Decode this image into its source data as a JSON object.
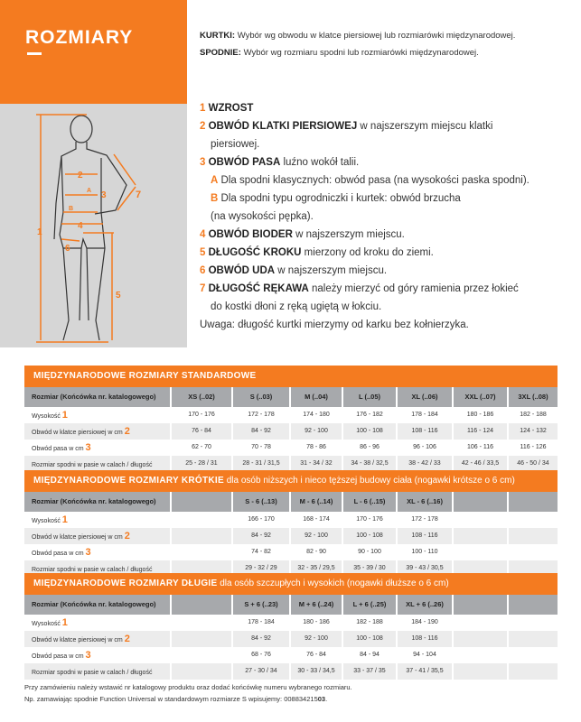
{
  "brand": {
    "title": "ROZMIARY"
  },
  "intro": {
    "kurtki_label": "KURTKI:",
    "kurtki_text": " Wybór wg obwodu w klatce piersiowej lub rozmiarówki międzynarodowej.",
    "spodnie_label": "SPODNIE:",
    "spodnie_text": " Wybór wg rozmiaru spodni lub rozmiarówki międzynarodowej."
  },
  "figure": {
    "labels": [
      "1",
      "2",
      "3",
      "4",
      "5",
      "6",
      "7",
      "A",
      "B"
    ]
  },
  "legend": [
    {
      "num": "1",
      "title": "WZROST",
      "text": ""
    },
    {
      "num": "2",
      "title": "OBWÓD KLATKI PIERSIOWEJ",
      "text": " w najszerszym miejscu klatki",
      "cont": "piersiowej."
    },
    {
      "num": "3",
      "title": "OBWÓD PASA",
      "text": " luźno wokół talii."
    },
    {
      "num": "A",
      "title": "",
      "text": " Dla spodni klasycznych: obwód pasa (na wysokości paska spodni)."
    },
    {
      "num": "B",
      "title": "",
      "text": " Dla spodni typu ogrodniczki i kurtek: obwód brzucha",
      "cont": "(na wysokości pępka)."
    },
    {
      "num": "4",
      "title": "OBWÓD BIODER",
      "text": " w najszerszym miejscu."
    },
    {
      "num": "5",
      "title": "DŁUGOŚĆ KROKU",
      "text": " mierzony od kroku do ziemi."
    },
    {
      "num": "6",
      "title": "OBWÓD UDA",
      "text": " w najszerszym miejscu."
    },
    {
      "num": "7",
      "title": "DŁUGOŚĆ RĘKAWA",
      "text": " należy mierzyć od góry ramienia przez łokieć",
      "cont": "do kostki dłoni z ręką ugiętą w łokciu."
    }
  ],
  "note": "Uwaga: długość kurtki mierzymy od karku bez kołnierzyka.",
  "tables": [
    {
      "title": "MIĘDZYNARODOWE ROZMIARY STANDARDOWE",
      "subtitle": "",
      "header": [
        "Rozmiar (Końcówka nr. katalogowego)",
        "XS (..02)",
        "S (..03)",
        "M (..04)",
        "L (..05)",
        "XL (..06)",
        "XXL (..07)",
        "3XL (..08)"
      ],
      "rows": [
        {
          "label": "Wysokość",
          "num": "1",
          "cells": [
            "170 - 176",
            "172 - 178",
            "174 - 180",
            "176 - 182",
            "178 - 184",
            "180 - 186",
            "182 - 188"
          ]
        },
        {
          "label": "Obwód w klatce piersiowej w cm",
          "num": "2",
          "cells": [
            "76 - 84",
            "84 - 92",
            "92 - 100",
            "100 - 108",
            "108 - 116",
            "116 - 124",
            "124 - 132"
          ]
        },
        {
          "label": "Obwód pasa w cm",
          "num": "3",
          "cells": [
            "62 - 70",
            "70 - 78",
            "78 - 86",
            "86 - 96",
            "96 - 106",
            "106 - 116",
            "116 - 126"
          ]
        },
        {
          "label": "Rozmiar spodni w pasie w calach / długość",
          "num": "",
          "cells": [
            "25 - 28 / 31",
            "28 - 31 / 31,5",
            "31 - 34 / 32",
            "34 - 38 / 32,5",
            "38 - 42 / 33",
            "42 - 46 / 33,5",
            "46 - 50 / 34"
          ]
        }
      ]
    },
    {
      "title": "MIĘDZYNARODOWE ROZMIARY KRÓTKIE",
      "subtitle": " dla osób niższych i nieco tęższej budowy ciała (nogawki krótsze o 6 cm)",
      "header": [
        "Rozmiar (Końcówka nr. katalogowego)",
        "",
        "S - 6 (..13)",
        "M - 6 (..14)",
        "L - 6 (..15)",
        "XL - 6 (..16)",
        "",
        ""
      ],
      "rows": [
        {
          "label": "Wysokość",
          "num": "1",
          "cells": [
            "",
            "166 - 170",
            "168 - 174",
            "170 - 176",
            "172 - 178",
            "",
            ""
          ]
        },
        {
          "label": "Obwód w klatce piersiowej w cm",
          "num": "2",
          "cells": [
            "",
            "84 - 92",
            "92 - 100",
            "100 - 108",
            "108 - 116",
            "",
            ""
          ]
        },
        {
          "label": "Obwód pasa w cm",
          "num": "3",
          "cells": [
            "",
            "74 - 82",
            "82 - 90",
            "90 - 100",
            "100 - 110",
            "",
            ""
          ]
        },
        {
          "label": "Rozmiar spodni w pasie w calach / długość",
          "num": "",
          "cells": [
            "",
            "29 - 32 / 29",
            "32 - 35 / 29,5",
            "35 - 39 / 30",
            "39 - 43 / 30,5",
            "",
            ""
          ]
        }
      ]
    },
    {
      "title": "MIĘDZYNARODOWE ROZMIARY DŁUGIE",
      "subtitle": " dla osób szczupłych i wysokich (nogawki dłuższe o 6 cm)",
      "header": [
        "Rozmiar (Końcówka nr. katalogowego)",
        "",
        "S + 6 (..23)",
        "M + 6 (..24)",
        "L + 6 (..25)",
        "XL + 6 (..26)",
        "",
        ""
      ],
      "rows": [
        {
          "label": "Wysokość",
          "num": "1",
          "cells": [
            "",
            "178 - 184",
            "180 - 186",
            "182 - 188",
            "184 - 190",
            "",
            ""
          ]
        },
        {
          "label": "Obwód w klatce piersiowej w cm",
          "num": "2",
          "cells": [
            "",
            "84 - 92",
            "92 - 100",
            "100 - 108",
            "108 - 116",
            "",
            ""
          ]
        },
        {
          "label": "Obwód pasa w cm",
          "num": "3",
          "cells": [
            "",
            "68 - 76",
            "76 - 84",
            "84 - 94",
            "94 - 104",
            "",
            ""
          ]
        },
        {
          "label": "Rozmiar spodni w pasie w calach / długość",
          "num": "",
          "cells": [
            "",
            "27 - 30 / 34",
            "30 - 33 / 34,5",
            "33 - 37 / 35",
            "37 - 41 / 35,5",
            "",
            ""
          ]
        }
      ]
    }
  ],
  "footer": {
    "line1": "Przy zamówieniu należy wstawić nr katalogowy produktu oraz dodać końcówkę numeru wybranego rozmiaru.",
    "line2": "Np. zamawiając spodnie Function Universal w standardowym rozmiarze S wpisujemy: 008834215",
    "line2_bold": "03",
    "line2_end": "."
  },
  "colors": {
    "accent": "#f47b20",
    "header_gray": "#a7a9ac",
    "panel_gray": "#d6d6d6"
  }
}
